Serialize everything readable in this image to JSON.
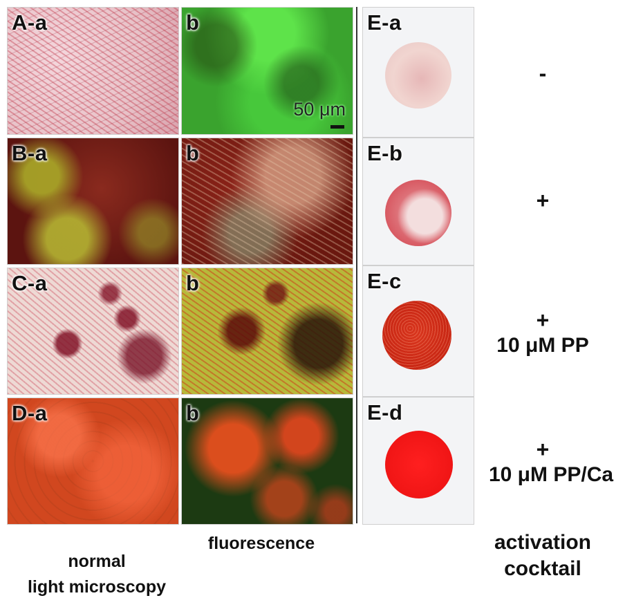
{
  "panels": {
    "A_a": "A-a",
    "A_b": "b",
    "B_a": "B-a",
    "B_b": "b",
    "C_a": "C-a",
    "C_b": "b",
    "D_a": "D-a",
    "D_b": "b",
    "E_a": "E-a",
    "E_b": "E-b",
    "E_c": "E-c",
    "E_d": "E-d"
  },
  "scale_bar": "50 μm",
  "conditions": {
    "a": "-",
    "b": "+",
    "c_plus": "+",
    "c": "10 μM PP",
    "d_plus": "+",
    "d": "10 μM PP/Ca"
  },
  "captions": {
    "col1_line1": "normal",
    "col1_line2": "light microscopy",
    "col2": "fluorescence",
    "col3_line1": "activation",
    "col3_line2": "cocktail"
  }
}
